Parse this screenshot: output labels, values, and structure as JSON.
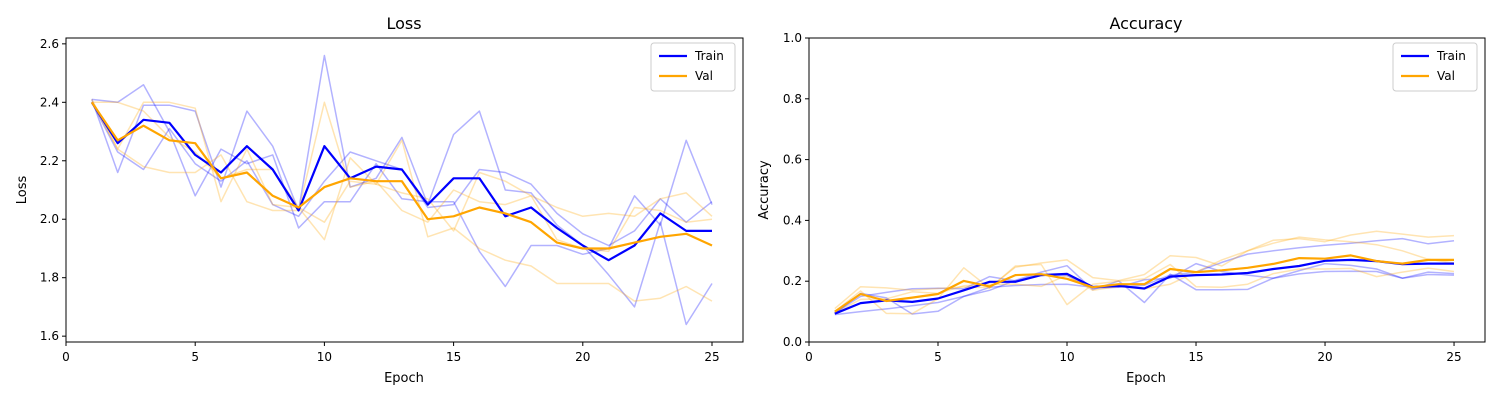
{
  "chart_data": [
    {
      "type": "line",
      "title": "Loss",
      "xlabel": "Epoch",
      "ylabel": "Loss",
      "xlim": [
        0,
        26.2
      ],
      "ylim": [
        1.58,
        2.62
      ],
      "xticks": [
        0,
        5,
        10,
        15,
        20,
        25
      ],
      "yticks": [
        1.6,
        1.8,
        2.0,
        2.2,
        2.4,
        2.6
      ],
      "ytick_decimals": 1,
      "legend": "top-right",
      "x": [
        1,
        2,
        3,
        4,
        5,
        6,
        7,
        8,
        9,
        10,
        11,
        12,
        13,
        14,
        15,
        16,
        17,
        18,
        19,
        20,
        21,
        22,
        23,
        24,
        25
      ],
      "series": [
        {
          "name": "Train",
          "color": "#0000ff",
          "values": [
            2.4,
            2.26,
            2.34,
            2.33,
            2.22,
            2.16,
            2.25,
            2.17,
            2.03,
            2.25,
            2.14,
            2.18,
            2.17,
            2.05,
            2.14,
            2.14,
            2.01,
            2.04,
            1.97,
            1.91,
            1.86,
            1.91,
            2.02,
            1.96,
            1.96
          ]
        },
        {
          "name": "Val",
          "color": "#ffa500",
          "values": [
            2.4,
            2.27,
            2.32,
            2.27,
            2.26,
            2.14,
            2.16,
            2.08,
            2.04,
            2.11,
            2.14,
            2.13,
            2.13,
            2.0,
            2.01,
            2.04,
            2.02,
            1.99,
            1.92,
            1.9,
            1.9,
            1.92,
            1.94,
            1.95,
            1.91
          ]
        }
      ],
      "runs": [
        {
          "color": "#0000ff",
          "values": [
            2.41,
            2.16,
            2.39,
            2.39,
            2.37,
            2.11,
            2.37,
            2.25,
            2.03,
            2.56,
            2.11,
            2.14,
            2.28,
            2.05,
            2.29,
            2.37,
            2.1,
            2.09,
            1.98,
            1.91,
            1.81,
            1.7,
            1.99,
            1.64,
            1.78
          ]
        },
        {
          "color": "#0000ff",
          "values": [
            2.41,
            2.4,
            2.46,
            2.3,
            2.08,
            2.24,
            2.19,
            2.22,
            1.97,
            2.06,
            2.06,
            2.19,
            2.07,
            2.06,
            2.06,
            1.89,
            1.77,
            1.91,
            1.91,
            1.88,
            1.9,
            2.08,
            1.98,
            2.27,
            2.05
          ]
        },
        {
          "color": "#0000ff",
          "values": [
            2.4,
            2.23,
            2.17,
            2.31,
            2.19,
            2.13,
            2.2,
            2.05,
            2.01,
            2.13,
            2.23,
            2.2,
            2.17,
            2.04,
            2.05,
            2.17,
            2.16,
            2.12,
            2.02,
            1.95,
            1.91,
            1.96,
            2.07,
            1.99,
            2.06
          ]
        },
        {
          "color": "#ffa500",
          "values": [
            2.41,
            2.24,
            2.4,
            2.4,
            2.38,
            2.06,
            2.24,
            2.05,
            2.04,
            1.93,
            2.21,
            2.12,
            2.27,
            1.94,
            1.97,
            1.9,
            1.86,
            1.84,
            1.78,
            1.78,
            1.78,
            1.72,
            1.73,
            1.77,
            1.72
          ]
        },
        {
          "color": "#ffa500",
          "values": [
            2.4,
            2.24,
            2.18,
            2.16,
            2.16,
            2.22,
            2.06,
            2.03,
            2.03,
            2.4,
            2.11,
            2.13,
            2.03,
            1.99,
            2.1,
            2.06,
            2.05,
            2.08,
            2.04,
            2.01,
            2.02,
            2.01,
            2.07,
            2.09,
            2.01
          ]
        },
        {
          "color": "#ffa500",
          "values": [
            2.4,
            2.4,
            2.37,
            2.28,
            2.23,
            2.14,
            2.17,
            2.17,
            2.04,
            1.99,
            2.13,
            2.12,
            2.09,
            2.07,
            1.96,
            2.16,
            2.13,
            2.08,
            1.93,
            1.9,
            1.89,
            2.04,
            2.03,
            1.99,
            2.0
          ]
        }
      ]
    },
    {
      "type": "line",
      "title": "Accuracy",
      "xlabel": "Epoch",
      "ylabel": "Accuracy",
      "xlim": [
        0,
        26.2
      ],
      "ylim": [
        0,
        1.0
      ],
      "xticks": [
        0,
        5,
        10,
        15,
        20,
        25
      ],
      "yticks": [
        0.0,
        0.2,
        0.4,
        0.6,
        0.8,
        1.0
      ],
      "ytick_decimals": 1,
      "legend": "top-right",
      "x": [
        1,
        2,
        3,
        4,
        5,
        6,
        7,
        8,
        9,
        10,
        11,
        12,
        13,
        14,
        15,
        16,
        17,
        18,
        19,
        20,
        21,
        22,
        23,
        24,
        25
      ],
      "series": [
        {
          "name": "Train",
          "color": "#0000ff",
          "values": [
            0.093,
            0.128,
            0.137,
            0.132,
            0.143,
            0.17,
            0.198,
            0.198,
            0.22,
            0.224,
            0.181,
            0.185,
            0.176,
            0.215,
            0.22,
            0.222,
            0.227,
            0.24,
            0.25,
            0.267,
            0.27,
            0.266,
            0.256,
            0.258,
            0.258
          ]
        },
        {
          "name": "Val",
          "color": "#ffa500",
          "values": [
            0.1,
            0.158,
            0.135,
            0.146,
            0.158,
            0.201,
            0.183,
            0.22,
            0.223,
            0.208,
            0.18,
            0.19,
            0.19,
            0.24,
            0.23,
            0.236,
            0.244,
            0.257,
            0.276,
            0.274,
            0.285,
            0.266,
            0.258,
            0.27,
            0.27
          ]
        }
      ],
      "runs": [
        {
          "color": "#0000ff",
          "values": [
            0.09,
            0.1,
            0.109,
            0.119,
            0.13,
            0.15,
            0.18,
            0.186,
            0.189,
            0.19,
            0.18,
            0.18,
            0.187,
            0.22,
            0.23,
            0.262,
            0.289,
            0.3,
            0.31,
            0.318,
            0.325,
            0.333,
            0.34,
            0.323,
            0.333
          ]
        },
        {
          "color": "#0000ff",
          "values": [
            0.093,
            0.16,
            0.145,
            0.092,
            0.101,
            0.15,
            0.17,
            0.203,
            0.23,
            0.251,
            0.172,
            0.201,
            0.13,
            0.223,
            0.172,
            0.172,
            0.173,
            0.21,
            0.224,
            0.232,
            0.233,
            0.232,
            0.21,
            0.222,
            0.22
          ]
        },
        {
          "color": "#0000ff",
          "values": [
            0.096,
            0.15,
            0.163,
            0.175,
            0.177,
            0.175,
            0.215,
            0.201,
            0.223,
            0.218,
            0.177,
            0.18,
            0.205,
            0.21,
            0.258,
            0.232,
            0.22,
            0.21,
            0.235,
            0.258,
            0.252,
            0.24,
            0.21,
            0.23,
            0.225
          ]
        },
        {
          "color": "#ffa500",
          "values": [
            0.11,
            0.182,
            0.178,
            0.17,
            0.176,
            0.181,
            0.179,
            0.246,
            0.26,
            0.27,
            0.212,
            0.202,
            0.222,
            0.284,
            0.278,
            0.25,
            0.3,
            0.335,
            0.34,
            0.33,
            0.352,
            0.364,
            0.355,
            0.345,
            0.35
          ]
        },
        {
          "color": "#ffa500",
          "values": [
            0.1,
            0.168,
            0.094,
            0.093,
            0.142,
            0.244,
            0.177,
            0.25,
            0.255,
            0.123,
            0.19,
            0.2,
            0.208,
            0.255,
            0.182,
            0.18,
            0.19,
            0.225,
            0.24,
            0.24,
            0.242,
            0.215,
            0.23,
            0.243,
            0.232
          ]
        },
        {
          "color": "#ffa500",
          "values": [
            0.095,
            0.14,
            0.142,
            0.165,
            0.16,
            0.185,
            0.19,
            0.19,
            0.183,
            0.22,
            0.17,
            0.183,
            0.175,
            0.19,
            0.23,
            0.27,
            0.3,
            0.325,
            0.345,
            0.336,
            0.33,
            0.32,
            0.3,
            0.272,
            0.26
          ]
        }
      ]
    }
  ]
}
